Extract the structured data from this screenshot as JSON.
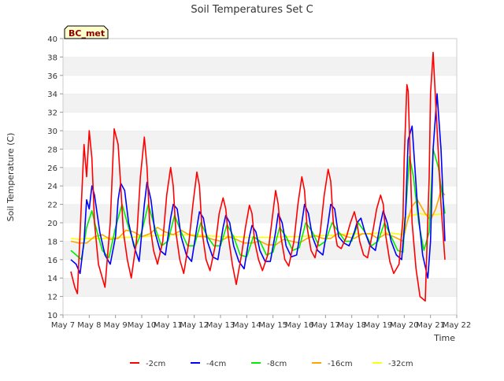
{
  "chart_data": {
    "type": "line",
    "title": "Soil Temperatures Set C",
    "xlabel": "Time",
    "ylabel": "Soil Temperature (C)",
    "station_label": "BC_met",
    "ylim": [
      10,
      40
    ],
    "yticks": [
      10,
      12,
      14,
      16,
      18,
      20,
      22,
      24,
      26,
      28,
      30,
      32,
      34,
      36,
      38,
      40
    ],
    "xlim": [
      7,
      22
    ],
    "xtick_labels": [
      "May 7",
      "May 8",
      "May 9",
      "May 10",
      "May 11",
      "May 12",
      "May 13",
      "May 14",
      "May 15",
      "May 16",
      "May 17",
      "May 18",
      "May 19",
      "May 20",
      "May 21",
      "May 22"
    ],
    "grid": "horizontal bands",
    "legend_position": "bottom",
    "series": [
      {
        "name": "-2cm",
        "color": "#ff0000",
        "x": [
          7.3,
          7.45,
          7.55,
          7.7,
          7.8,
          7.9,
          8.0,
          8.1,
          8.2,
          8.35,
          8.6,
          8.8,
          8.95,
          9.1,
          9.2,
          9.3,
          9.45,
          9.6,
          9.8,
          9.95,
          10.1,
          10.2,
          10.3,
          10.45,
          10.6,
          10.8,
          10.95,
          11.1,
          11.2,
          11.3,
          11.45,
          11.6,
          11.8,
          11.95,
          12.1,
          12.2,
          12.3,
          12.45,
          12.6,
          12.8,
          12.95,
          13.1,
          13.2,
          13.3,
          13.45,
          13.6,
          13.8,
          13.95,
          14.1,
          14.2,
          14.3,
          14.45,
          14.6,
          14.8,
          14.95,
          15.1,
          15.2,
          15.3,
          15.45,
          15.6,
          15.8,
          15.95,
          16.1,
          16.2,
          16.3,
          16.45,
          16.6,
          16.8,
          16.95,
          17.1,
          17.2,
          17.3,
          17.45,
          17.6,
          17.8,
          17.95,
          18.1,
          18.2,
          18.3,
          18.45,
          18.6,
          18.8,
          18.95,
          19.1,
          19.2,
          19.3,
          19.45,
          19.6,
          19.8,
          19.95,
          20.0,
          20.1,
          20.15,
          20.3,
          20.45,
          20.6,
          20.8,
          20.95,
          21.0,
          21.1,
          21.2,
          21.4,
          21.55
        ],
        "y": [
          14.7,
          13.0,
          12.3,
          22.0,
          28.5,
          25.0,
          30.0,
          27.0,
          20.0,
          15.5,
          13.0,
          20.0,
          30.2,
          28.5,
          24.0,
          19.0,
          16.0,
          14.0,
          18.0,
          25.0,
          29.3,
          26.0,
          20.0,
          17.0,
          15.5,
          18.0,
          23.0,
          26.0,
          24.0,
          19.0,
          16.0,
          14.5,
          18.0,
          22.0,
          25.5,
          24.0,
          19.0,
          16.0,
          14.8,
          17.5,
          21.0,
          22.7,
          21.5,
          18.5,
          15.5,
          13.3,
          16.5,
          19.5,
          21.9,
          21.0,
          18.0,
          16.0,
          14.8,
          16.5,
          20.0,
          23.5,
          22.0,
          18.5,
          16.0,
          15.3,
          18.0,
          22.0,
          25.0,
          23.5,
          19.5,
          17.0,
          16.2,
          19.0,
          23.0,
          25.8,
          24.5,
          20.0,
          17.5,
          17.2,
          18.5,
          20.0,
          21.2,
          20.0,
          18.0,
          16.5,
          16.2,
          19.0,
          21.5,
          23.0,
          22.0,
          18.5,
          15.8,
          14.5,
          15.5,
          20.5,
          27.0,
          35.0,
          34.3,
          20.0,
          15.0,
          12.0,
          11.5,
          25.0,
          34.0,
          38.5,
          33.0,
          22.0,
          16.0
        ]
      },
      {
        "name": "-4cm",
        "color": "#0000ff",
        "x": [
          7.3,
          7.5,
          7.65,
          7.8,
          7.9,
          8.0,
          8.1,
          8.2,
          8.4,
          8.6,
          8.8,
          9.0,
          9.1,
          9.2,
          9.35,
          9.5,
          9.7,
          9.9,
          10.1,
          10.2,
          10.35,
          10.5,
          10.7,
          10.9,
          11.1,
          11.2,
          11.35,
          11.5,
          11.7,
          11.9,
          12.1,
          12.2,
          12.35,
          12.5,
          12.7,
          12.9,
          13.1,
          13.2,
          13.35,
          13.5,
          13.7,
          13.9,
          14.1,
          14.2,
          14.35,
          14.5,
          14.7,
          14.9,
          15.1,
          15.2,
          15.35,
          15.5,
          15.7,
          15.9,
          16.1,
          16.2,
          16.35,
          16.5,
          16.7,
          16.9,
          17.1,
          17.2,
          17.35,
          17.5,
          17.7,
          17.9,
          18.1,
          18.2,
          18.35,
          18.5,
          18.7,
          18.9,
          19.1,
          19.2,
          19.35,
          19.5,
          19.7,
          19.9,
          20.05,
          20.15,
          20.3,
          20.5,
          20.7,
          20.9,
          21.0,
          21.1,
          21.25,
          21.4,
          21.55
        ],
        "y": [
          16.0,
          15.5,
          14.5,
          18.0,
          22.5,
          21.5,
          24.0,
          23.0,
          19.0,
          16.5,
          15.5,
          18.5,
          22.5,
          24.3,
          23.5,
          20.0,
          17.5,
          15.8,
          22.0,
          24.4,
          22.5,
          19.0,
          17.0,
          16.5,
          20.5,
          22.0,
          21.5,
          18.5,
          16.5,
          15.8,
          19.5,
          21.2,
          20.5,
          18.0,
          16.3,
          16.0,
          19.5,
          20.8,
          20.0,
          17.5,
          15.8,
          15.0,
          18.5,
          19.7,
          19.0,
          17.0,
          15.8,
          15.8,
          19.0,
          21.0,
          20.0,
          17.5,
          16.3,
          16.5,
          20.0,
          22.0,
          21.0,
          18.5,
          17.0,
          16.5,
          20.0,
          22.0,
          21.5,
          18.5,
          17.8,
          17.5,
          19.0,
          20.0,
          20.5,
          19.0,
          17.5,
          17.0,
          20.0,
          21.3,
          20.0,
          18.0,
          16.5,
          16.0,
          21.0,
          29.0,
          30.5,
          22.0,
          16.5,
          14.0,
          18.0,
          28.0,
          34.0,
          28.0,
          18.0
        ]
      },
      {
        "name": "-8cm",
        "color": "#00ee00",
        "x": [
          7.3,
          7.5,
          7.7,
          7.9,
          8.1,
          8.3,
          8.5,
          8.75,
          9.0,
          9.25,
          9.5,
          9.75,
          10.0,
          10.25,
          10.5,
          10.75,
          11.0,
          11.25,
          11.5,
          11.75,
          12.0,
          12.25,
          12.5,
          12.75,
          13.0,
          13.25,
          13.5,
          13.75,
          14.0,
          14.25,
          14.5,
          14.75,
          15.0,
          15.25,
          15.5,
          15.75,
          16.0,
          16.25,
          16.5,
          16.75,
          17.0,
          17.25,
          17.5,
          17.75,
          18.0,
          18.25,
          18.5,
          18.75,
          19.0,
          19.25,
          19.5,
          19.75,
          19.95,
          20.05,
          20.2,
          20.35,
          20.55,
          20.75,
          20.95,
          21.1,
          21.3,
          21.55
        ],
        "y": [
          17.0,
          16.5,
          16.0,
          19.5,
          21.3,
          19.0,
          17.0,
          16.2,
          19.5,
          22.0,
          19.5,
          17.3,
          19.0,
          22.0,
          19.5,
          17.5,
          18.0,
          20.8,
          19.0,
          17.5,
          17.5,
          20.0,
          18.5,
          17.5,
          17.5,
          19.8,
          18.5,
          16.5,
          16.3,
          18.5,
          18.0,
          16.5,
          16.8,
          19.5,
          18.5,
          17.0,
          17.3,
          20.0,
          19.0,
          17.5,
          18.0,
          20.0,
          19.0,
          18.0,
          18.0,
          20.0,
          19.0,
          17.5,
          18.0,
          20.0,
          18.5,
          17.0,
          16.8,
          21.0,
          27.2,
          25.0,
          20.0,
          17.0,
          19.0,
          28.0,
          26.0,
          21.0
        ]
      },
      {
        "name": "-16cm",
        "color": "#ffa500",
        "x": [
          7.3,
          7.6,
          7.9,
          8.2,
          8.5,
          8.8,
          9.1,
          9.4,
          9.7,
          10.0,
          10.3,
          10.6,
          10.9,
          11.2,
          11.5,
          11.8,
          12.1,
          12.4,
          12.7,
          13.0,
          13.3,
          13.6,
          13.9,
          14.2,
          14.5,
          14.8,
          15.1,
          15.4,
          15.7,
          16.0,
          16.3,
          16.6,
          16.9,
          17.2,
          17.5,
          17.8,
          18.1,
          18.4,
          18.7,
          19.0,
          19.3,
          19.6,
          19.95,
          20.1,
          20.3,
          20.5,
          20.8,
          21.0,
          21.2,
          21.4,
          21.55
        ],
        "y": [
          18.0,
          17.8,
          17.8,
          18.5,
          18.7,
          18.2,
          18.3,
          19.2,
          19.0,
          18.5,
          18.8,
          19.5,
          19.0,
          18.7,
          19.2,
          18.7,
          18.5,
          18.5,
          18.2,
          18.0,
          18.5,
          18.2,
          17.8,
          17.8,
          18.0,
          17.6,
          17.6,
          18.2,
          18.0,
          17.8,
          18.3,
          18.6,
          18.3,
          18.3,
          18.9,
          18.5,
          18.3,
          18.8,
          18.8,
          18.3,
          18.8,
          18.5,
          18.0,
          20.0,
          21.8,
          22.5,
          21.0,
          20.3,
          21.5,
          23.5,
          23.0
        ]
      },
      {
        "name": "-32cm",
        "color": "#ffff00",
        "x": [
          7.3,
          7.6,
          8.0,
          8.5,
          9.0,
          9.5,
          10.0,
          10.5,
          11.0,
          11.5,
          12.0,
          12.5,
          13.0,
          13.5,
          14.0,
          14.5,
          15.0,
          15.5,
          16.0,
          16.5,
          17.0,
          17.5,
          18.0,
          18.5,
          19.0,
          19.5,
          19.95,
          20.0,
          20.3,
          20.6,
          20.9,
          21.2,
          21.55
        ],
        "y": [
          18.3,
          18.2,
          18.3,
          18.3,
          18.4,
          18.4,
          18.5,
          18.6,
          18.7,
          18.7,
          18.7,
          18.6,
          18.5,
          18.5,
          18.4,
          18.4,
          18.4,
          18.5,
          18.5,
          18.6,
          18.6,
          18.7,
          18.8,
          18.8,
          18.9,
          18.9,
          18.7,
          20.5,
          20.8,
          21.0,
          20.8,
          20.9,
          21.0
        ]
      }
    ]
  }
}
